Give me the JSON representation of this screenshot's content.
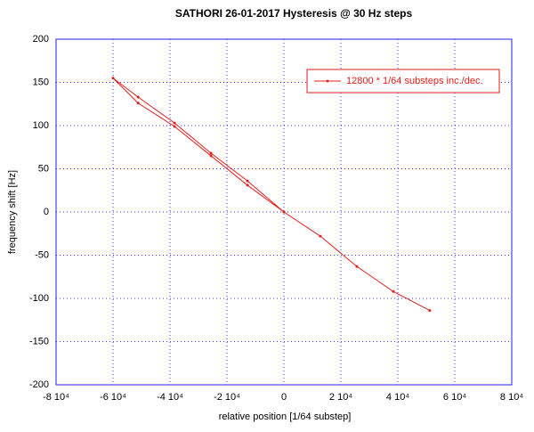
{
  "chart_data": {
    "type": "line",
    "title": "SATHORI 26-01-2017 Hysteresis @ 30 Hz steps",
    "xlabel": "relative position [1/64 substep]",
    "ylabel": "frequency shift [Hz]",
    "xlim": [
      -80000,
      80000
    ],
    "ylim": [
      -200,
      200
    ],
    "xticks": [
      {
        "value": -80000,
        "label": "-8 10⁴"
      },
      {
        "value": -60000,
        "label": "-6 10⁴"
      },
      {
        "value": -40000,
        "label": "-4 10⁴"
      },
      {
        "value": -20000,
        "label": "-2 10⁴"
      },
      0,
      {
        "value": 20000,
        "label": "2 10⁴"
      },
      {
        "value": 40000,
        "label": "4 10⁴"
      },
      {
        "value": 60000,
        "label": "6 10⁴"
      },
      {
        "value": 80000,
        "label": "8 10⁴"
      }
    ],
    "yticks": [
      -200,
      -150,
      -100,
      -50,
      0,
      50,
      100,
      150,
      200
    ],
    "grid": true,
    "legend": "upper right",
    "series": [
      {
        "name": "12800 * 1/64 substeps inc./dec.",
        "color": "#e0201c",
        "x": [
          0,
          -12800,
          -25600,
          -38400,
          -51200,
          -60000,
          -51200,
          -38400,
          -25600,
          -12800,
          0,
          12800,
          25600,
          38400,
          51200
        ],
        "values": [
          0,
          31,
          65,
          99,
          126,
          155,
          133,
          103,
          68,
          36,
          0,
          -28,
          -63,
          -92,
          -114
        ]
      }
    ]
  }
}
